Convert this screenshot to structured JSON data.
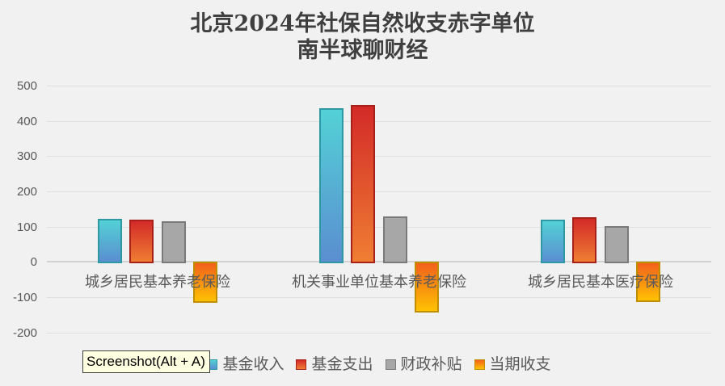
{
  "title": {
    "line1": "北京2024年社保自然收支赤字单位",
    "line2": "南半球聊财经"
  },
  "tooltip": {
    "label": "Screenshot(Alt + A)"
  },
  "chart_data": {
    "type": "bar",
    "categories": [
      "城乡居民基本养老保险",
      "机关事业单位基本养老保险",
      "城乡居民基本医疗保险"
    ],
    "series": [
      {
        "name": "基金收入",
        "values": [
          122,
          436,
          120
        ],
        "color_top": "#53d1d6",
        "color_bottom": "#5a8ed0",
        "border": "#2f99a3"
      },
      {
        "name": "基金支出",
        "values": [
          120,
          445,
          127
        ],
        "color_top": "#d32a28",
        "color_bottom": "#ef7e33",
        "border": "#a8201a"
      },
      {
        "name": "财政补贴",
        "values": [
          115,
          128,
          101
        ],
        "color_top": "#a7a7a7",
        "color_bottom": "#a7a7a7",
        "border": "#7a7a7a"
      },
      {
        "name": "当期收支",
        "values": [
          -112,
          -140,
          -110
        ],
        "color_top": "#f2611c",
        "color_bottom": "#ffc103",
        "border": "#bf8f00"
      }
    ],
    "ylim": [
      -200,
      500
    ],
    "ytick_step": 100,
    "yticks": [
      500,
      400,
      300,
      200,
      100,
      0,
      -100,
      -200
    ],
    "grid": true,
    "legend_position": "bottom",
    "title": "北京2024年社保自然收支赤字单位 南半球聊财经"
  },
  "colors": {
    "background": "#f1f1f1",
    "gridline": "#e0e0e0",
    "zero_line": "#d2d2d2",
    "axis_text": "#595959",
    "title_text": "#3f3f3f",
    "tooltip_bg": "#ffffe1"
  }
}
